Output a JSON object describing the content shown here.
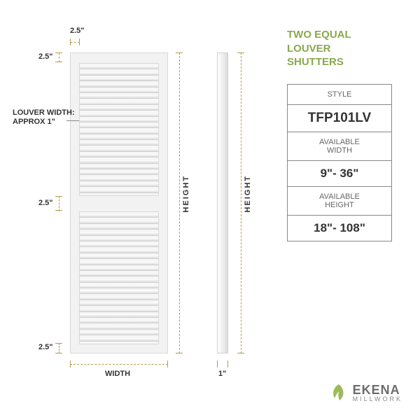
{
  "title": "TWO EQUAL\nLOUVER\nSHUTTERS",
  "dims": {
    "top_left_h": "2.5\"",
    "top_left_v": "2.5\"",
    "mid_left": "2.5\"",
    "bot_left": "2.5\"",
    "louver_note_l1": "LOUVER WIDTH:",
    "louver_note_l2": "APPROX 1\"",
    "width_label": "WIDTH",
    "height_label": "HEIGHT",
    "side_height_label": "HEIGHT",
    "side_depth": "1\""
  },
  "spec": {
    "style_hdr": "STYLE",
    "style_val": "TFP101LV",
    "width_hdr": "AVAILABLE\nWIDTH",
    "width_val": "9\"- 36\"",
    "height_hdr": "AVAILABLE\nHEIGHT",
    "height_val": "18\"- 108\""
  },
  "logo": {
    "name": "EKENA",
    "sub": "MILLWORK"
  },
  "style": {
    "accent": "#8aa84e",
    "dim_color": "#b59b4a",
    "shutter_fill": "#f2f2f2",
    "border": "#888888",
    "louver_count": 22
  }
}
